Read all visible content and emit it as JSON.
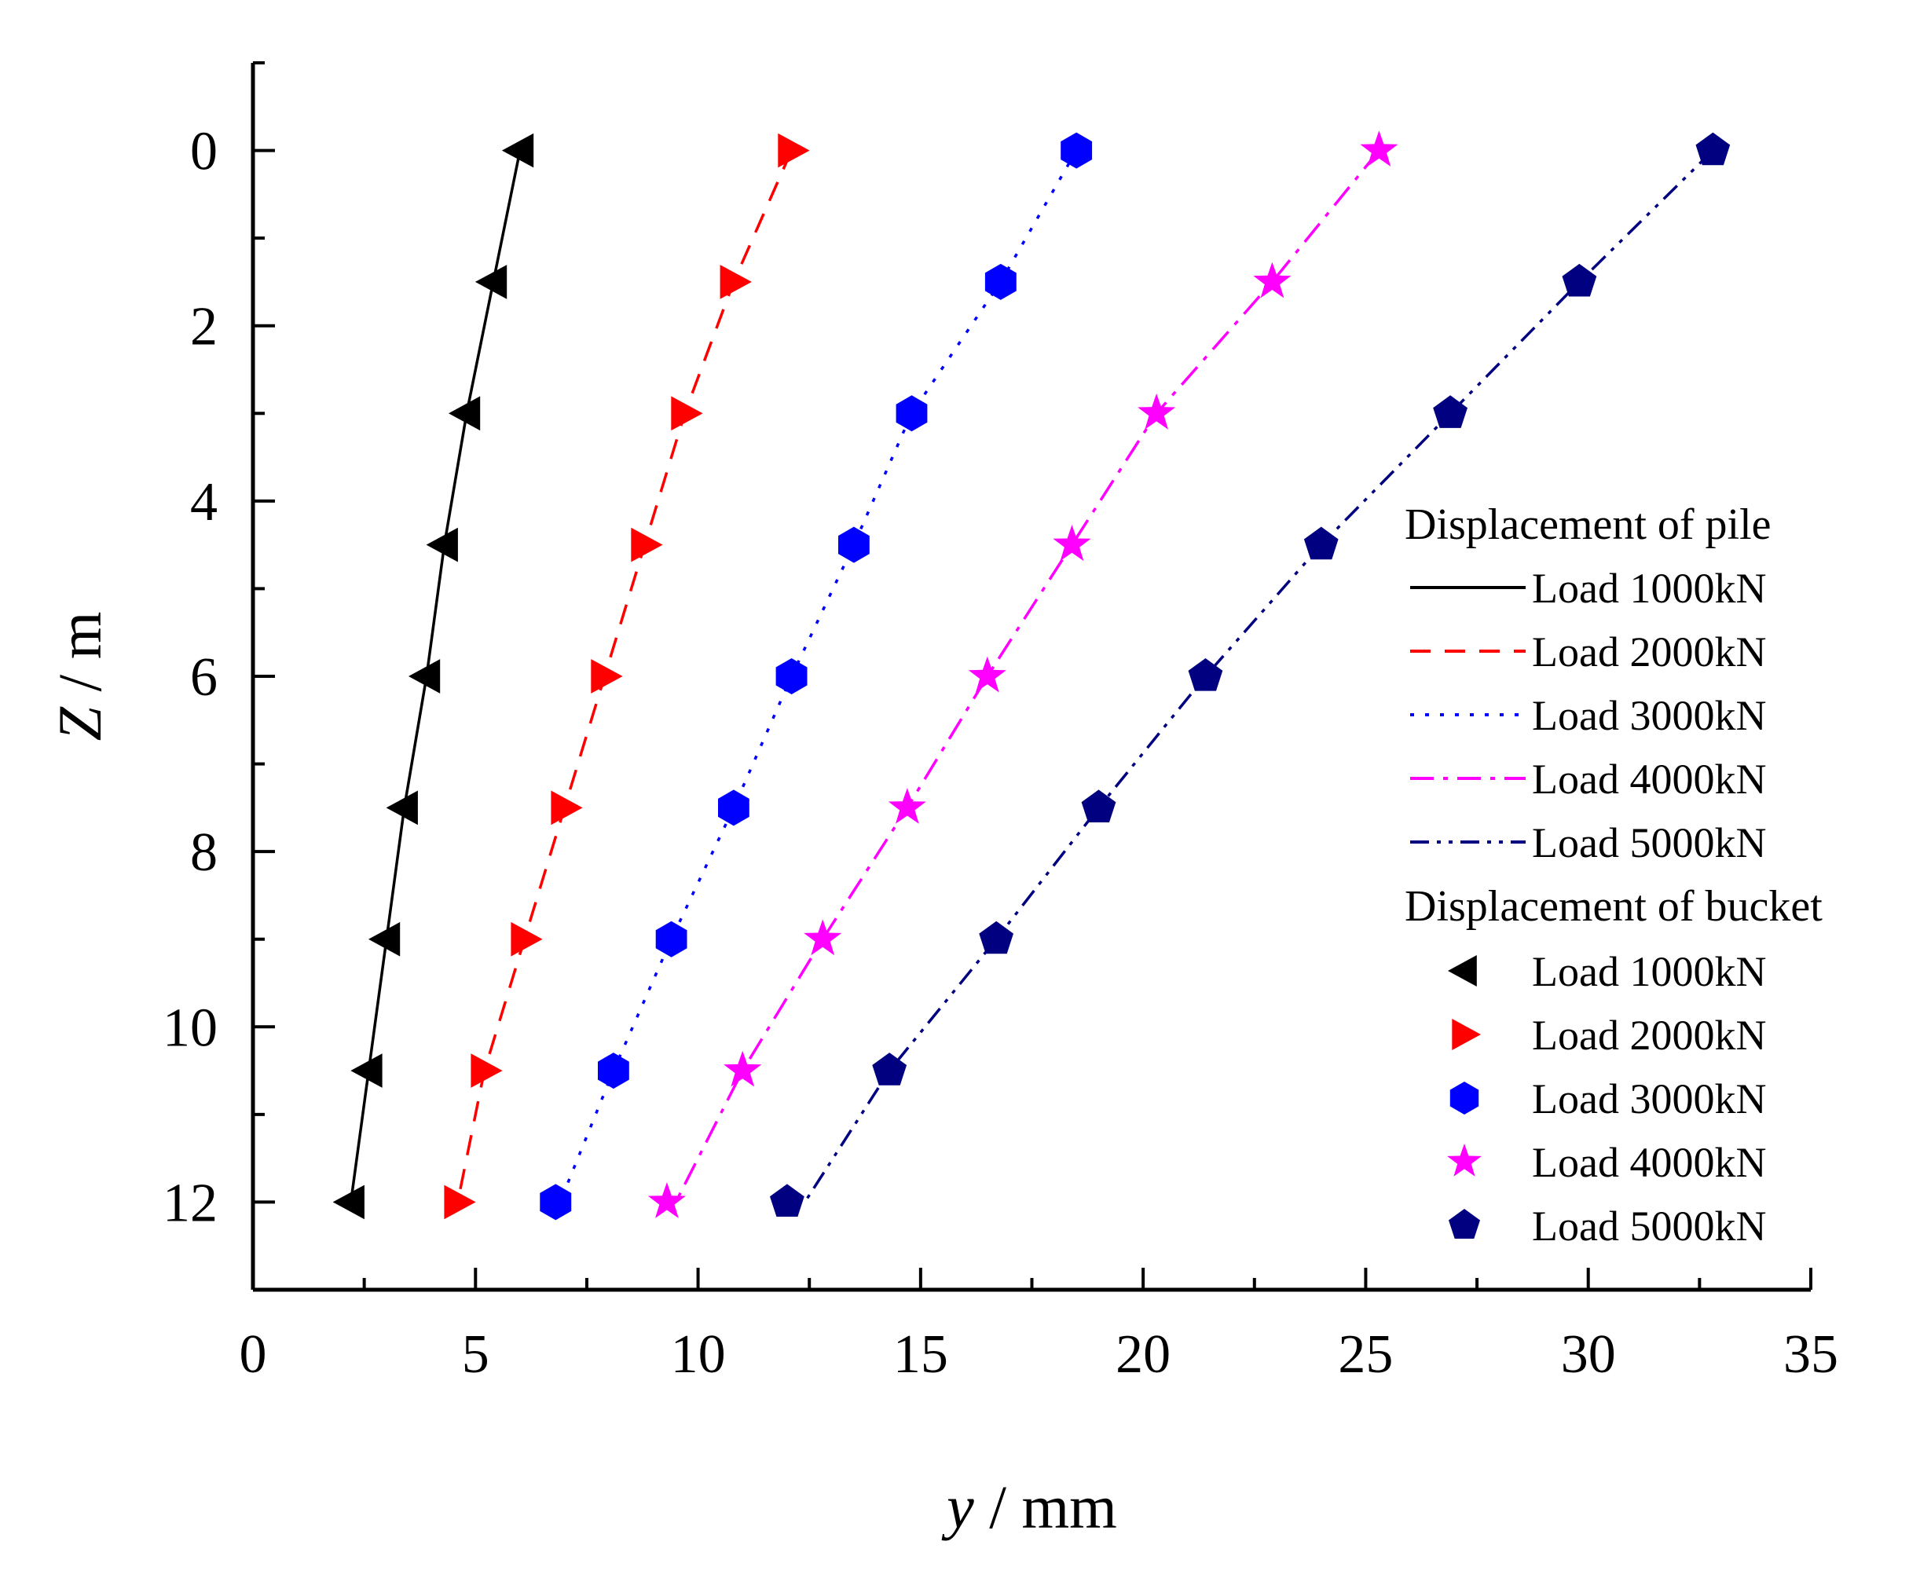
{
  "chart_data": {
    "type": "scatter",
    "xlabel": {
      "var": "y",
      "unit": " / mm"
    },
    "ylabel": {
      "var": "Z",
      "unit": " / m"
    },
    "xlim": [
      0,
      35
    ],
    "ylim": [
      13,
      -1
    ],
    "xticks": [
      0,
      5,
      10,
      15,
      20,
      25,
      30,
      35
    ],
    "yticks": [
      0,
      2,
      4,
      6,
      8,
      10,
      12
    ],
    "grid": false,
    "legend_position": "right",
    "legend_groups": [
      {
        "title": "Displacement of pile",
        "kind": "line"
      },
      {
        "title": "Displacement of bucket",
        "kind": "marker"
      }
    ],
    "pile_series": [
      {
        "name": "Load 1000kN",
        "color": "#000000",
        "dash": "solid",
        "x": [
          6.0,
          5.4,
          4.8,
          4.3,
          3.9,
          3.4,
          3.0,
          2.6,
          2.2
        ],
        "z": [
          0,
          1.5,
          3,
          4.5,
          6,
          7.5,
          9,
          10.5,
          12
        ]
      },
      {
        "name": "Load 2000kN",
        "color": "#ff0000",
        "dash": "dash",
        "x": [
          12.1,
          10.8,
          9.7,
          8.8,
          7.9,
          7.0,
          6.1,
          5.2,
          4.6
        ],
        "z": [
          0,
          1.5,
          3,
          4.5,
          6,
          7.5,
          9,
          10.5,
          12
        ]
      },
      {
        "name": "Load 3000kN",
        "color": "#0000ff",
        "dash": "dot",
        "x": [
          18.5,
          16.8,
          14.8,
          13.5,
          12.1,
          10.8,
          9.4,
          8.1,
          6.9
        ],
        "z": [
          0,
          1.5,
          3,
          4.5,
          6,
          7.5,
          9,
          10.5,
          12
        ]
      },
      {
        "name": "Load 4000kN",
        "color": "#ff00ff",
        "dash": "dashdot",
        "x": [
          25.3,
          22.9,
          20.3,
          18.4,
          16.5,
          14.7,
          12.8,
          11.0,
          9.5
        ],
        "z": [
          0,
          1.5,
          3,
          4.5,
          6,
          7.5,
          9,
          10.5,
          12
        ]
      },
      {
        "name": "Load 5000kN",
        "color": "#000080",
        "dash": "dashdotdot",
        "x": [
          32.8,
          29.8,
          26.9,
          24.0,
          21.4,
          19.0,
          16.7,
          14.3,
          12.4
        ],
        "z": [
          0,
          1.5,
          3,
          4.5,
          6,
          7.5,
          9,
          10.5,
          12
        ]
      }
    ],
    "bucket_series": [
      {
        "name": "Load 1000kN",
        "color": "#000000",
        "marker": "triangle-left",
        "x": [
          6.0,
          5.4,
          4.8,
          4.3,
          3.9,
          3.4,
          3.0,
          2.6,
          2.2
        ],
        "z": [
          0,
          1.5,
          3,
          4.5,
          6,
          7.5,
          9,
          10.5,
          12
        ]
      },
      {
        "name": "Load 2000kN",
        "color": "#ff0000",
        "marker": "triangle-right",
        "x": [
          12.1,
          10.8,
          9.7,
          8.8,
          7.9,
          7.0,
          6.1,
          5.2,
          4.6
        ],
        "z": [
          0,
          1.5,
          3,
          4.5,
          6,
          7.5,
          9,
          10.5,
          12
        ]
      },
      {
        "name": "Load 3000kN",
        "color": "#0000ff",
        "marker": "hexagon",
        "x": [
          18.5,
          16.8,
          14.8,
          13.5,
          12.1,
          10.8,
          9.4,
          8.1,
          6.8
        ],
        "z": [
          0,
          1.5,
          3,
          4.5,
          6,
          7.5,
          9,
          10.5,
          12
        ]
      },
      {
        "name": "Load 4000kN",
        "color": "#ff00ff",
        "marker": "star",
        "x": [
          25.3,
          22.9,
          20.3,
          18.4,
          16.5,
          14.7,
          12.8,
          11.0,
          9.3
        ],
        "z": [
          0,
          1.5,
          3,
          4.5,
          6,
          7.5,
          9,
          10.5,
          12
        ]
      },
      {
        "name": "Load 5000kN",
        "color": "#000080",
        "marker": "pentagon",
        "x": [
          32.8,
          29.8,
          26.9,
          24.0,
          21.4,
          19.0,
          16.7,
          14.3,
          12.0
        ],
        "z": [
          0,
          1.5,
          3,
          4.5,
          6,
          7.5,
          9,
          10.5,
          12
        ]
      }
    ]
  }
}
